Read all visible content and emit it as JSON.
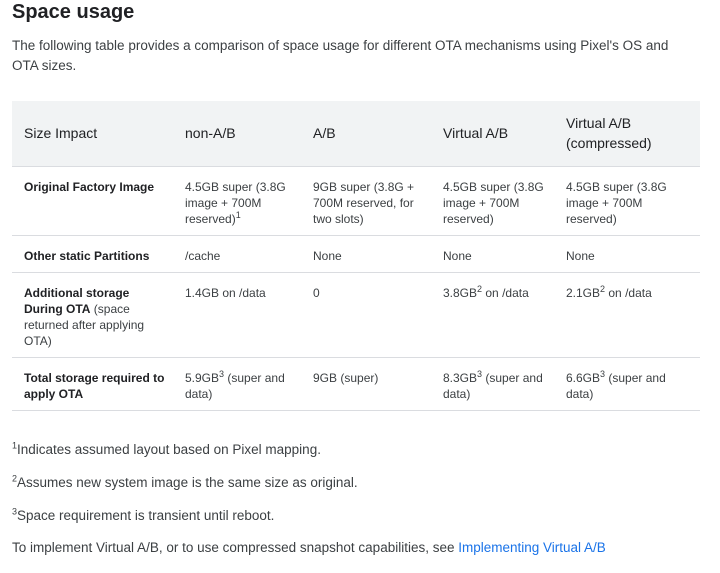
{
  "title": "Space usage",
  "intro": "The following table provides a comparison of space usage for different OTA mechanisms using Pixel's OS and OTA sizes.",
  "table": {
    "headers": [
      "Size Impact",
      "non-A/B",
      "A/B",
      "Virtual A/B",
      "Virtual A/B (compressed)"
    ],
    "rows": [
      {
        "label": {
          "bold": "Original Factory Image",
          "normal": ""
        },
        "cells": [
          {
            "pre": "4.5GB super (3.8G image + 700M reserved)",
            "sup": "1",
            "post": ""
          },
          {
            "pre": "9GB super (3.8G + 700M reserved, for two slots)",
            "sup": "",
            "post": ""
          },
          {
            "pre": "4.5GB super (3.8G image + 700M reserved)",
            "sup": "",
            "post": ""
          },
          {
            "pre": "4.5GB super (3.8G image + 700M reserved)",
            "sup": "",
            "post": ""
          }
        ]
      },
      {
        "label": {
          "bold": "Other static Partitions",
          "normal": ""
        },
        "cells": [
          {
            "pre": "/cache",
            "sup": "",
            "post": ""
          },
          {
            "pre": "None",
            "sup": "",
            "post": ""
          },
          {
            "pre": "None",
            "sup": "",
            "post": ""
          },
          {
            "pre": "None",
            "sup": "",
            "post": ""
          }
        ]
      },
      {
        "label": {
          "bold": "Additional storage During OTA",
          "normal": " (space returned after applying OTA)"
        },
        "cells": [
          {
            "pre": "1.4GB on /data",
            "sup": "",
            "post": ""
          },
          {
            "pre": "0",
            "sup": "",
            "post": ""
          },
          {
            "pre": "3.8GB",
            "sup": "2",
            "post": " on /data"
          },
          {
            "pre": "2.1GB",
            "sup": "2",
            "post": " on /data"
          }
        ]
      },
      {
        "label": {
          "bold": "Total storage required to apply OTA",
          "normal": ""
        },
        "cells": [
          {
            "pre": "5.9GB",
            "sup": "3",
            "post": " (super and data)"
          },
          {
            "pre": "9GB (super)",
            "sup": "",
            "post": ""
          },
          {
            "pre": "8.3GB",
            "sup": "3",
            "post": " (super and data)"
          },
          {
            "pre": "6.6GB",
            "sup": "3",
            "post": " (super and data)"
          }
        ]
      }
    ]
  },
  "footnotes": [
    {
      "num": "1",
      "text": "Indicates assumed layout based on Pixel mapping."
    },
    {
      "num": "2",
      "text": "Assumes new system image is the same size as original."
    },
    {
      "num": "3",
      "text": "Space requirement is transient until reboot."
    }
  ],
  "closing": {
    "text": "To implement Virtual A/B, or to use compressed snapshot capabilities, see ",
    "link": "Implementing Virtual A/B"
  },
  "colors": {
    "link": "#1a73e8",
    "header_bg": "#f1f3f4"
  }
}
